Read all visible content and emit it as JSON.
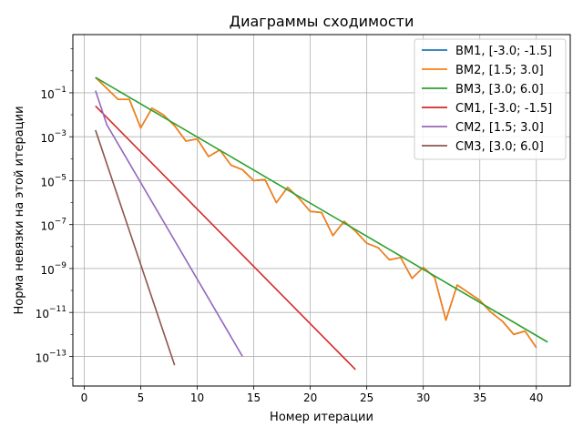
{
  "chart_data": {
    "type": "line",
    "title": "Диаграммы сходимости",
    "xlabel": "Номер итерации",
    "ylabel": "Норма невязки на этой итерации",
    "xlim": [
      -1.0,
      43.0
    ],
    "ylim_exp": [
      -14.35,
      1.65
    ],
    "yscale": "log",
    "grid": true,
    "legend_position": "top-right",
    "x_ticks": [
      0,
      5,
      10,
      15,
      20,
      25,
      30,
      35,
      40
    ],
    "y_ticks_exp": [
      -13,
      -11,
      -9,
      -7,
      -5,
      -3,
      -1
    ],
    "series": [
      {
        "name": "BM1, [-3.0; -1.5]",
        "color": "#1f77b4",
        "x": [
          1,
          2,
          3,
          4,
          5,
          6,
          7,
          8,
          9,
          10,
          11,
          12,
          13,
          14,
          15,
          16,
          17,
          18,
          19,
          20,
          21,
          22,
          23,
          24,
          25,
          26,
          27,
          28,
          29,
          30,
          31,
          32,
          33,
          34,
          35,
          36,
          37,
          38,
          39,
          40
        ],
        "y_exp": [
          -0.3,
          -0.8,
          -1.3,
          -1.3,
          -2.6,
          -1.7,
          -2.0,
          -2.5,
          -3.2,
          -3.1,
          -3.9,
          -3.6,
          -4.3,
          -4.5,
          -5.0,
          -4.95,
          -6.0,
          -5.3,
          -5.8,
          -6.4,
          -6.45,
          -7.5,
          -6.85,
          -7.3,
          -7.85,
          -8.05,
          -8.6,
          -8.5,
          -9.45,
          -8.95,
          -9.4,
          -11.35,
          -9.75,
          -10.1,
          -10.45,
          -11.0,
          -11.4,
          -12.0,
          -11.85,
          -12.6
        ]
      },
      {
        "name": "BM2, [1.5; 3.0]",
        "color": "#ff7f0e",
        "x": [
          1,
          2,
          3,
          4,
          5,
          6,
          7,
          8,
          9,
          10,
          11,
          12,
          13,
          14,
          15,
          16,
          17,
          18,
          19,
          20,
          21,
          22,
          23,
          24,
          25,
          26,
          27,
          28,
          29,
          30,
          31,
          32,
          33,
          34,
          35,
          36,
          37,
          38,
          39,
          40
        ],
        "y_exp": [
          -0.3,
          -0.8,
          -1.3,
          -1.3,
          -2.6,
          -1.7,
          -2.0,
          -2.5,
          -3.2,
          -3.1,
          -3.9,
          -3.6,
          -4.3,
          -4.5,
          -5.0,
          -4.95,
          -6.0,
          -5.3,
          -5.8,
          -6.4,
          -6.45,
          -7.5,
          -6.85,
          -7.3,
          -7.85,
          -8.05,
          -8.6,
          -8.5,
          -9.45,
          -8.95,
          -9.4,
          -11.35,
          -9.75,
          -10.1,
          -10.45,
          -11.0,
          -11.4,
          -12.0,
          -11.85,
          -12.6
        ]
      },
      {
        "name": "BM3, [3.0; 6.0]",
        "color": "#2ca02c",
        "x": [
          1,
          41
        ],
        "y_exp": [
          -0.3,
          -12.35
        ]
      },
      {
        "name": "CM1, [-3.0; -1.5]",
        "color": "#d62728",
        "x": [
          1,
          24
        ],
        "y_exp": [
          -1.6,
          -13.6
        ]
      },
      {
        "name": "CM2, [1.5; 3.0]",
        "color": "#9467bd",
        "x": [
          1,
          2,
          14
        ],
        "y_exp": [
          -0.9,
          -2.45,
          -13.0
        ]
      },
      {
        "name": "CM3, [3.0; 6.0]",
        "color": "#8c564b",
        "x": [
          1,
          8
        ],
        "y_exp": [
          -2.7,
          -13.4
        ]
      }
    ]
  }
}
